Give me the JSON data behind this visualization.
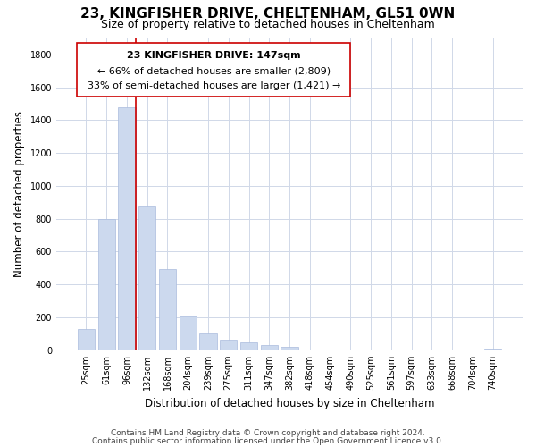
{
  "title": "23, KINGFISHER DRIVE, CHELTENHAM, GL51 0WN",
  "subtitle": "Size of property relative to detached houses in Cheltenham",
  "xlabel": "Distribution of detached houses by size in Cheltenham",
  "ylabel": "Number of detached properties",
  "footer_lines": [
    "Contains HM Land Registry data © Crown copyright and database right 2024.",
    "Contains public sector information licensed under the Open Government Licence v3.0."
  ],
  "categories": [
    "25sqm",
    "61sqm",
    "96sqm",
    "132sqm",
    "168sqm",
    "204sqm",
    "239sqm",
    "275sqm",
    "311sqm",
    "347sqm",
    "382sqm",
    "418sqm",
    "454sqm",
    "490sqm",
    "525sqm",
    "561sqm",
    "597sqm",
    "633sqm",
    "668sqm",
    "704sqm",
    "740sqm"
  ],
  "values": [
    130,
    800,
    1480,
    880,
    495,
    205,
    105,
    65,
    50,
    30,
    22,
    5,
    2,
    0,
    0,
    0,
    0,
    0,
    0,
    0,
    10
  ],
  "bar_color": "#ccd9ee",
  "bar_edge_color": "#aabbdd",
  "annotation_line_color": "#cc0000",
  "annotation_box_text": [
    "23 KINGFISHER DRIVE: 147sqm",
    "← 66% of detached houses are smaller (2,809)",
    "33% of semi-detached houses are larger (1,421) →"
  ],
  "ylim": [
    0,
    1900
  ],
  "yticks": [
    0,
    200,
    400,
    600,
    800,
    1000,
    1200,
    1400,
    1600,
    1800
  ],
  "background_color": "#ffffff",
  "grid_color": "#d0d8e8",
  "title_fontsize": 11,
  "subtitle_fontsize": 9,
  "axis_label_fontsize": 8.5,
  "tick_fontsize": 7,
  "annotation_fontsize": 8,
  "footer_fontsize": 6.5
}
